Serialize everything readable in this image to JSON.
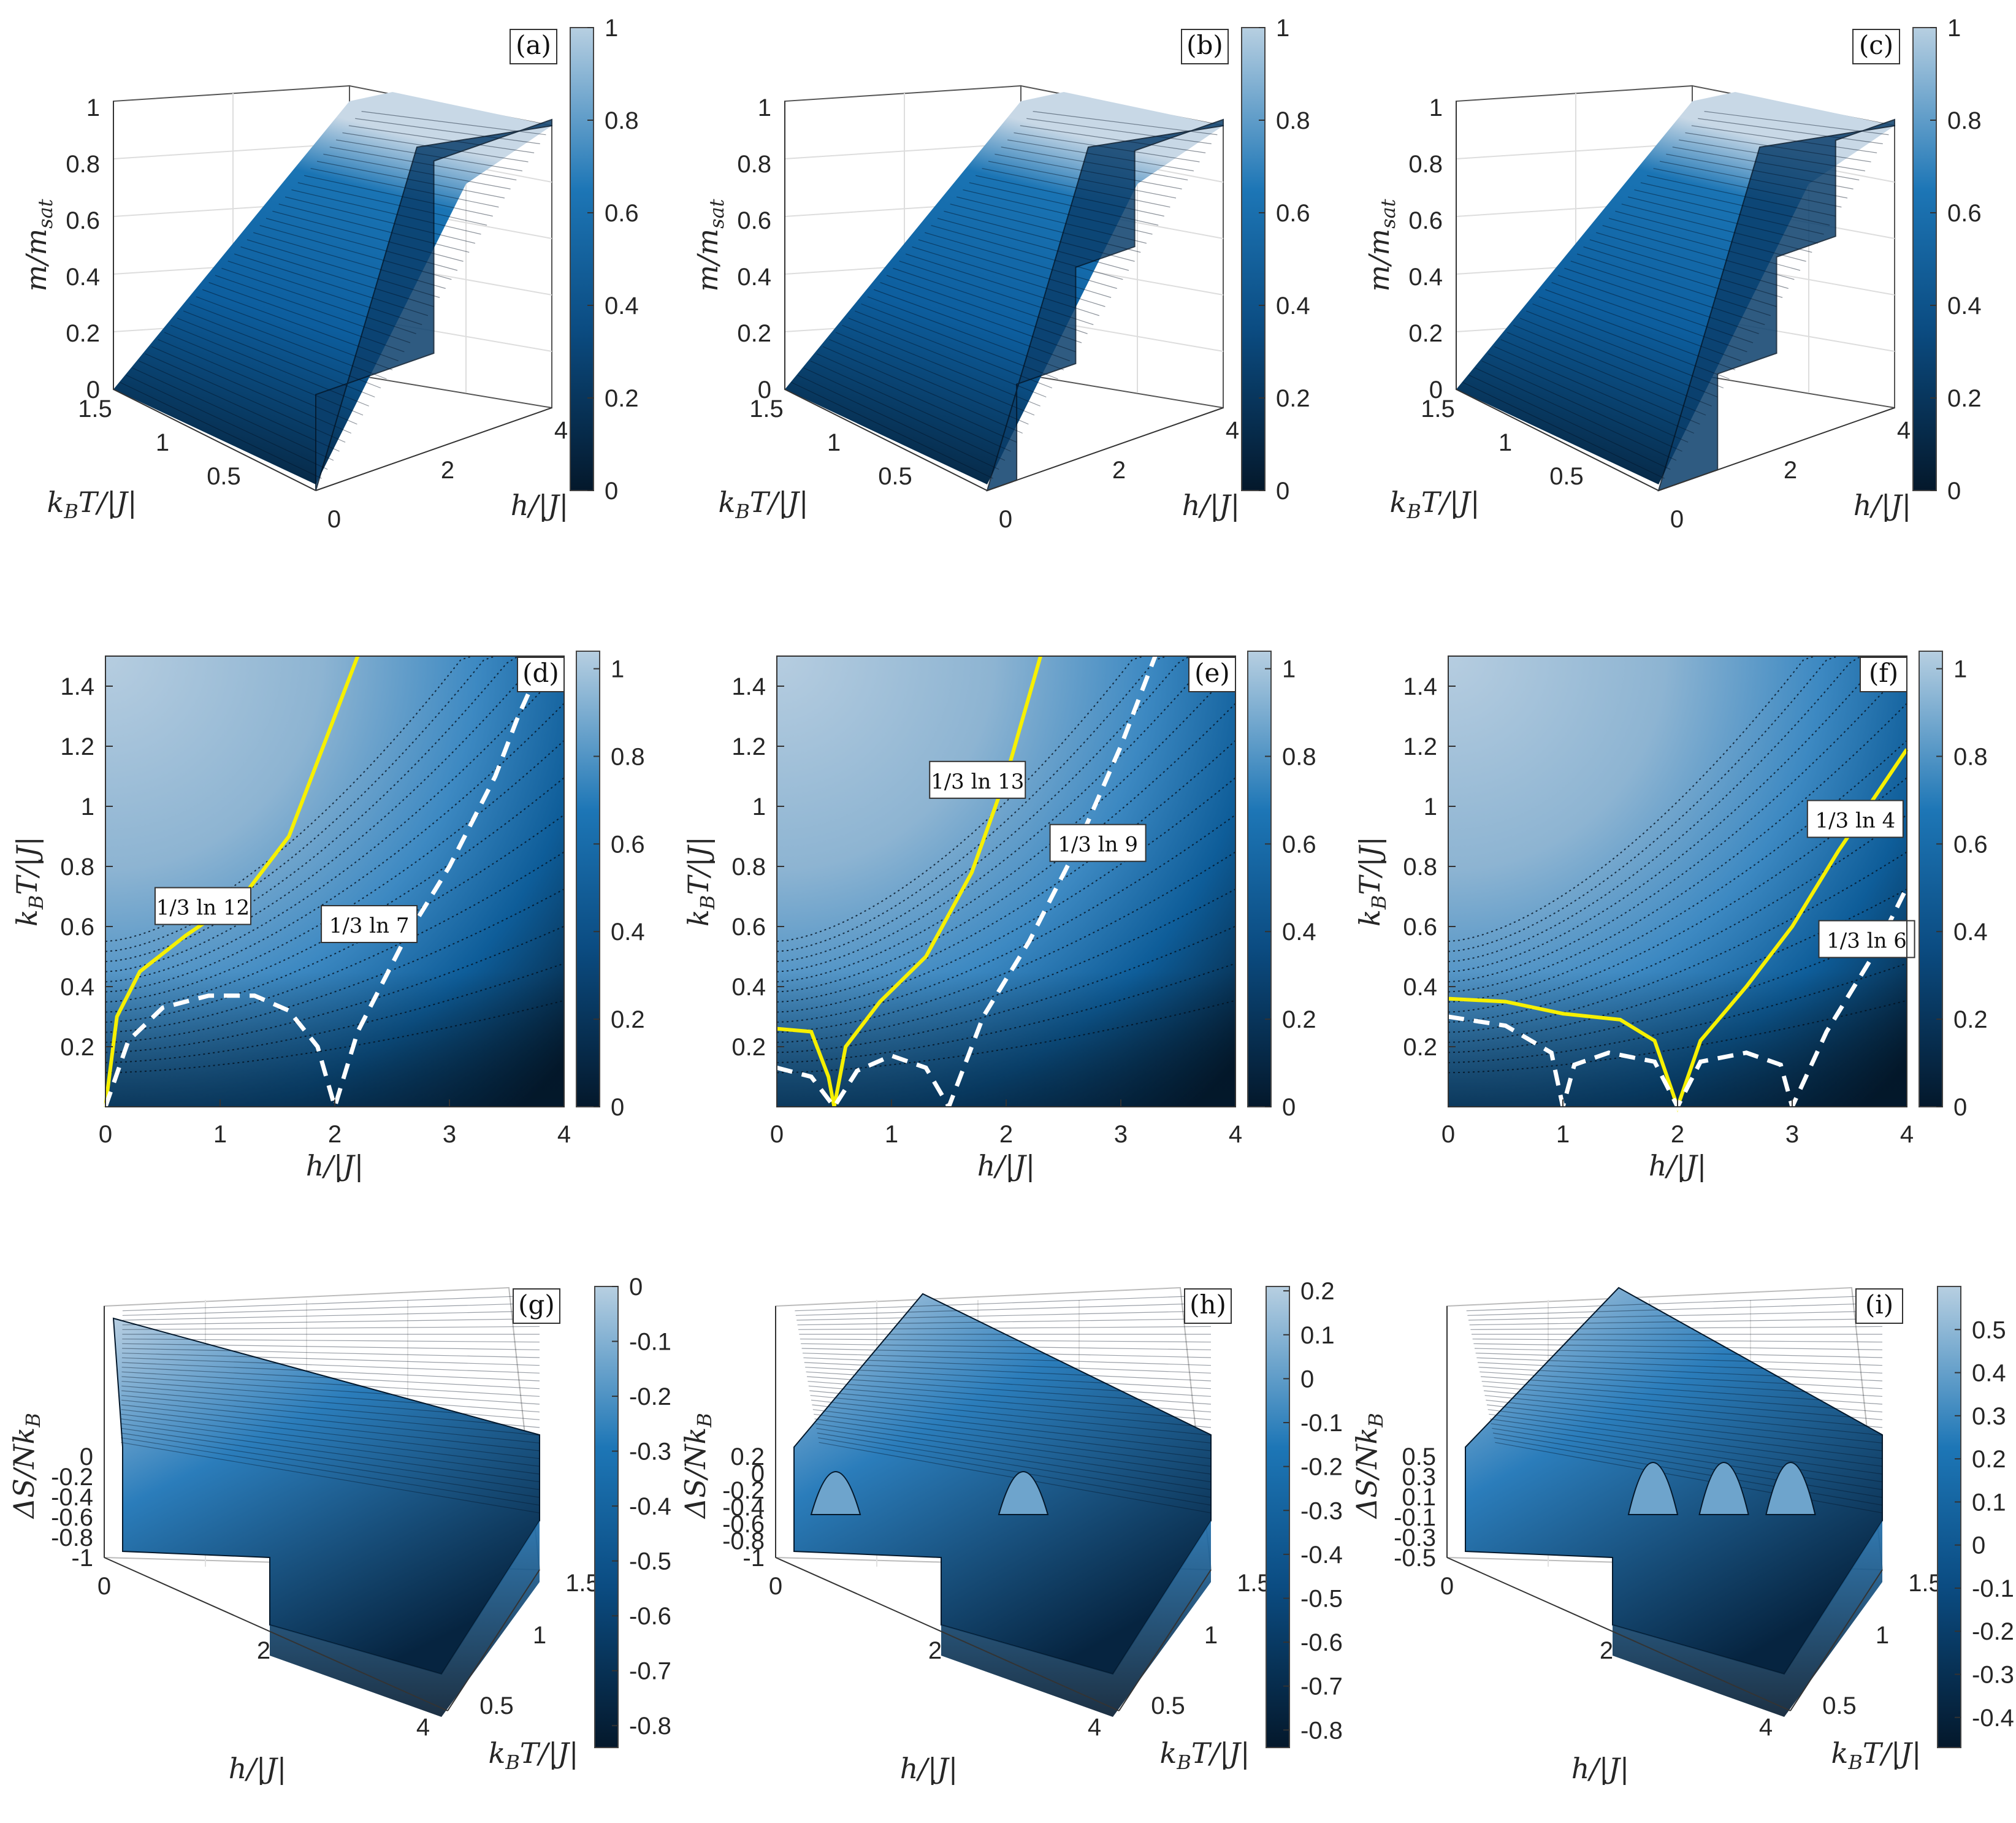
{
  "colors": {
    "dark": "#04182b",
    "mid": "#0d69ad",
    "light": "#b4cde0",
    "yellow_line": "#f6f000",
    "white_line": "#ffffff"
  },
  "chart_data": [
    {
      "panel": "(a)",
      "type": "surface3d",
      "zlabel": "m/m_sat",
      "xlabel": "h/|J|",
      "ylabel": "k_BT/|J|",
      "xlim": [
        0,
        4
      ],
      "ylim": [
        0,
        1.5
      ],
      "zlim": [
        0,
        1
      ],
      "z_ticks": [
        "0",
        "0.2",
        "0.4",
        "0.6",
        "0.8",
        "1"
      ],
      "x_ticks": [
        "0",
        "2",
        "4"
      ],
      "y_ticks": [
        "0.5",
        "1",
        "1.5"
      ],
      "colorbar": {
        "range": [
          0,
          1
        ],
        "ticks": [
          "0",
          "0.2",
          "0.4",
          "0.6",
          "0.8",
          "1"
        ]
      },
      "plateaus_at_T0": [
        {
          "h_from": 0,
          "h_to": 2,
          "m": 0.333
        },
        {
          "h_from": 2,
          "h_to": 4,
          "m": 1
        }
      ]
    },
    {
      "panel": "(b)",
      "type": "surface3d",
      "zlabel": "m/m_sat",
      "xlabel": "h/|J|",
      "ylabel": "k_BT/|J|",
      "xlim": [
        0,
        4
      ],
      "ylim": [
        0,
        1.5
      ],
      "zlim": [
        0,
        1
      ],
      "z_ticks": [
        "0",
        "0.2",
        "0.4",
        "0.6",
        "0.8",
        "1"
      ],
      "x_ticks": [
        "0",
        "2",
        "4"
      ],
      "y_ticks": [
        "0.5",
        "1",
        "1.5"
      ],
      "colorbar": {
        "range": [
          0,
          1
        ],
        "ticks": [
          "0",
          "0.2",
          "0.4",
          "0.6",
          "0.8",
          "1"
        ]
      },
      "plateaus_at_T0": [
        {
          "h_from": 0,
          "h_to": 0.5,
          "m": 0
        },
        {
          "h_from": 0.5,
          "h_to": 1.5,
          "m": 0.333
        },
        {
          "h_from": 1.5,
          "h_to": 2.5,
          "m": 0.667
        },
        {
          "h_from": 2.5,
          "h_to": 4,
          "m": 1
        }
      ]
    },
    {
      "panel": "(c)",
      "type": "surface3d",
      "zlabel": "m/m_sat",
      "xlabel": "h/|J|",
      "ylabel": "k_BT/|J|",
      "xlim": [
        0,
        4
      ],
      "ylim": [
        0,
        1.5
      ],
      "zlim": [
        0,
        1
      ],
      "z_ticks": [
        "0",
        "0.2",
        "0.4",
        "0.6",
        "0.8",
        "1"
      ],
      "x_ticks": [
        "0",
        "2",
        "4"
      ],
      "y_ticks": [
        "0.5",
        "1",
        "1.5"
      ],
      "colorbar": {
        "range": [
          0,
          1
        ],
        "ticks": [
          "0",
          "0.2",
          "0.4",
          "0.6",
          "0.8",
          "1"
        ]
      },
      "plateaus_at_T0": [
        {
          "h_from": 0,
          "h_to": 1,
          "m": 0
        },
        {
          "h_from": 1,
          "h_to": 2,
          "m": 0.333
        },
        {
          "h_from": 2,
          "h_to": 3,
          "m": 0.667
        },
        {
          "h_from": 3,
          "h_to": 4,
          "m": 1
        }
      ]
    },
    {
      "panel": "(d)",
      "type": "heatmap",
      "xlabel": "h/|J|",
      "ylabel": "k_BT/|J|",
      "xlim": [
        0,
        4
      ],
      "ylim": [
        0,
        1.5
      ],
      "x_ticks": [
        "0",
        "1",
        "2",
        "3",
        "4"
      ],
      "y_ticks": [
        "0.2",
        "0.4",
        "0.6",
        "0.8",
        "1",
        "1.2",
        "1.4"
      ],
      "colorbar": {
        "range": [
          0,
          1.04
        ],
        "ticks": [
          "0",
          "0.2",
          "0.4",
          "0.6",
          "0.8",
          "1"
        ]
      },
      "lines": [
        {
          "style": "yellow",
          "label": "1/3 ln 12",
          "points": [
            [
              0,
              0
            ],
            [
              0.1,
              0.3
            ],
            [
              0.3,
              0.45
            ],
            [
              0.7,
              0.57
            ],
            [
              1.2,
              0.7
            ],
            [
              1.6,
              0.9
            ],
            [
              2.0,
              1.3
            ],
            [
              2.2,
              1.5
            ]
          ]
        },
        {
          "style": "white-dashed",
          "label": "1/3 ln 7",
          "points": [
            [
              0,
              0
            ],
            [
              0.2,
              0.22
            ],
            [
              0.5,
              0.33
            ],
            [
              0.9,
              0.37
            ],
            [
              1.3,
              0.37
            ],
            [
              1.6,
              0.32
            ],
            [
              1.85,
              0.2
            ],
            [
              2.0,
              0
            ],
            [
              2.2,
              0.25
            ],
            [
              2.6,
              0.55
            ],
            [
              3.0,
              0.8
            ],
            [
              3.4,
              1.1
            ],
            [
              3.6,
              1.3
            ],
            [
              3.8,
              1.47
            ]
          ]
        }
      ]
    },
    {
      "panel": "(e)",
      "type": "heatmap",
      "xlabel": "h/|J|",
      "ylabel": "k_BT/|J|",
      "xlim": [
        0,
        4
      ],
      "ylim": [
        0,
        1.5
      ],
      "x_ticks": [
        "0",
        "1",
        "2",
        "3",
        "4"
      ],
      "y_ticks": [
        "0.2",
        "0.4",
        "0.6",
        "0.8",
        "1",
        "1.2",
        "1.4"
      ],
      "colorbar": {
        "range": [
          0,
          1.04
        ],
        "ticks": [
          "0",
          "0.2",
          "0.4",
          "0.6",
          "0.8",
          "1"
        ]
      },
      "lines": [
        {
          "style": "yellow",
          "label": "1/3 ln 13",
          "points": [
            [
              0,
              0.26
            ],
            [
              0.3,
              0.25
            ],
            [
              0.45,
              0.1
            ],
            [
              0.5,
              0
            ],
            [
              0.6,
              0.2
            ],
            [
              0.9,
              0.35
            ],
            [
              1.3,
              0.5
            ],
            [
              1.7,
              0.78
            ],
            [
              2.0,
              1.1
            ],
            [
              2.3,
              1.5
            ]
          ]
        },
        {
          "style": "white-dashed",
          "label": "1/3 ln 9",
          "points": [
            [
              0,
              0.13
            ],
            [
              0.3,
              0.1
            ],
            [
              0.5,
              0
            ],
            [
              0.7,
              0.12
            ],
            [
              1.0,
              0.17
            ],
            [
              1.3,
              0.13
            ],
            [
              1.5,
              0
            ],
            [
              1.8,
              0.3
            ],
            [
              2.2,
              0.55
            ],
            [
              2.6,
              0.85
            ],
            [
              3.0,
              1.2
            ],
            [
              3.3,
              1.5
            ]
          ]
        }
      ]
    },
    {
      "panel": "(f)",
      "type": "heatmap",
      "xlabel": "h/|J|",
      "ylabel": "k_BT/|J|",
      "xlim": [
        0,
        4
      ],
      "ylim": [
        0,
        1.5
      ],
      "x_ticks": [
        "0",
        "1",
        "2",
        "3",
        "4"
      ],
      "y_ticks": [
        "0.2",
        "0.4",
        "0.6",
        "0.8",
        "1",
        "1.2",
        "1.4"
      ],
      "colorbar": {
        "range": [
          0,
          1.04
        ],
        "ticks": [
          "0",
          "0.2",
          "0.4",
          "0.6",
          "0.8",
          "1"
        ]
      },
      "lines": [
        {
          "style": "yellow",
          "label": "1/3 ln 4",
          "points": [
            [
              0,
              0.36
            ],
            [
              0.5,
              0.35
            ],
            [
              1.0,
              0.31
            ],
            [
              1.5,
              0.29
            ],
            [
              1.8,
              0.22
            ],
            [
              2.0,
              0
            ],
            [
              2.2,
              0.22
            ],
            [
              2.6,
              0.4
            ],
            [
              3.0,
              0.6
            ],
            [
              3.4,
              0.85
            ],
            [
              4.0,
              1.19
            ]
          ]
        },
        {
          "style": "white-dashed",
          "label": "1/3 ln 6",
          "points": [
            [
              0,
              0.3
            ],
            [
              0.5,
              0.27
            ],
            [
              0.9,
              0.18
            ],
            [
              1.0,
              0
            ],
            [
              1.1,
              0.14
            ],
            [
              1.4,
              0.18
            ],
            [
              1.8,
              0.15
            ],
            [
              2.0,
              0
            ],
            [
              2.2,
              0.15
            ],
            [
              2.6,
              0.18
            ],
            [
              2.9,
              0.14
            ],
            [
              3.0,
              0
            ],
            [
              3.3,
              0.25
            ],
            [
              3.7,
              0.5
            ],
            [
              4.0,
              0.73
            ]
          ]
        }
      ]
    },
    {
      "panel": "(g)",
      "type": "surface3d",
      "zlabel": "ΔS/Nk_B",
      "xlabel": "h/|J|",
      "ylabel": "k_BT/|J|",
      "xlim": [
        0,
        4
      ],
      "ylim": [
        0,
        1.5
      ],
      "zlim": [
        -1,
        0
      ],
      "z_ticks": [
        "0",
        "-0.2",
        "-0.4",
        "-0.6",
        "-0.8",
        "-1"
      ],
      "x_ticks": [
        "0",
        "2",
        "4"
      ],
      "y_ticks": [
        "0.5",
        "1",
        "1.5"
      ],
      "colorbar": {
        "range": [
          -0.84,
          0
        ],
        "ticks": [
          "0",
          "-0.1",
          "-0.2",
          "-0.3",
          "-0.4",
          "-0.5",
          "-0.6",
          "-0.7",
          "-0.8"
        ]
      }
    },
    {
      "panel": "(h)",
      "type": "surface3d",
      "zlabel": "ΔS/Nk_B",
      "xlabel": "h/|J|",
      "ylabel": "k_BT/|J|",
      "xlim": [
        0,
        4
      ],
      "ylim": [
        0,
        1.5
      ],
      "zlim": [
        -1,
        0.2
      ],
      "z_ticks": [
        "0.2",
        "0",
        "-0.2",
        "-0.4",
        "-0.6",
        "-0.8",
        "-1"
      ],
      "x_ticks": [
        "0",
        "2",
        "4"
      ],
      "y_ticks": [
        "0.5",
        "1",
        "1.5"
      ],
      "colorbar": {
        "range": [
          -0.84,
          0.21
        ],
        "ticks": [
          "0.2",
          "0.1",
          "0",
          "-0.1",
          "-0.2",
          "-0.3",
          "-0.4",
          "-0.5",
          "-0.6",
          "-0.7",
          "-0.8"
        ]
      }
    },
    {
      "panel": "(i)",
      "type": "surface3d",
      "zlabel": "ΔS/Nk_B",
      "xlabel": "h/|J|",
      "ylabel": "k_BT/|J|",
      "xlim": [
        0,
        4
      ],
      "ylim": [
        0,
        1.5
      ],
      "zlim": [
        -0.5,
        0.5
      ],
      "z_ticks": [
        "0.5",
        "0.3",
        "0.1",
        "-0.1",
        "-0.3",
        "-0.5"
      ],
      "x_ticks": [
        "0",
        "2",
        "4"
      ],
      "y_ticks": [
        "0.5",
        "1",
        "1.5"
      ],
      "colorbar": {
        "range": [
          -0.47,
          0.6
        ],
        "ticks": [
          "0.5",
          "0.4",
          "0.3",
          "0.2",
          "0.1",
          "0",
          "-0.1",
          "-0.2",
          "-0.3",
          "-0.4"
        ]
      }
    }
  ]
}
